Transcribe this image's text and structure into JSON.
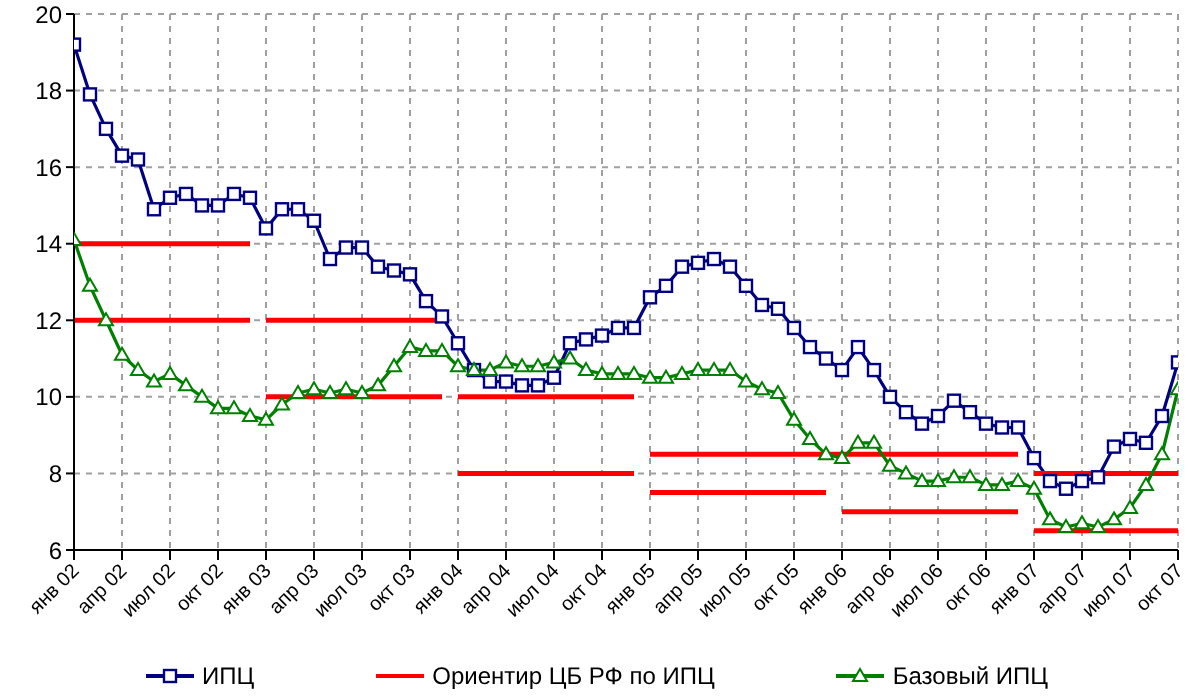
{
  "chart_data": {
    "type": "line",
    "categories": [
      "янв 02",
      null,
      null,
      "апр 02",
      null,
      null,
      "июл 02",
      null,
      null,
      "окт 02",
      null,
      null,
      "янв 03",
      null,
      null,
      "апр 03",
      null,
      null,
      "июл 03",
      null,
      null,
      "окт 03",
      null,
      null,
      "янв 04",
      null,
      null,
      "апр 04",
      null,
      null,
      "июл 04",
      null,
      null,
      "окт 04",
      null,
      null,
      "янв 05",
      null,
      null,
      "апр 05",
      null,
      null,
      "июл 05",
      null,
      null,
      "окт 05",
      null,
      null,
      "янв 06",
      null,
      null,
      "апр 06",
      null,
      null,
      "июл 06",
      null,
      null,
      "окт 06",
      null,
      null,
      "янв 07",
      null,
      null,
      "апр 07",
      null,
      null,
      "июл 07",
      null,
      null,
      "окт 07"
    ],
    "ylim": [
      6,
      20
    ],
    "yticks": [
      6,
      8,
      10,
      12,
      14,
      16,
      18,
      20
    ],
    "grid": true,
    "legend": "bottom",
    "series": [
      {
        "name": "ИПЦ",
        "color": "#000080",
        "marker": "square",
        "values": [
          19.2,
          17.9,
          17.0,
          16.3,
          16.2,
          14.9,
          15.2,
          15.3,
          15.0,
          15.0,
          15.3,
          15.2,
          14.4,
          14.9,
          14.9,
          14.6,
          13.6,
          13.9,
          13.9,
          13.4,
          13.3,
          13.2,
          12.5,
          12.1,
          11.4,
          10.7,
          10.4,
          10.4,
          10.3,
          10.3,
          10.5,
          11.4,
          11.5,
          11.6,
          11.8,
          11.8,
          12.6,
          12.9,
          13.4,
          13.5,
          13.6,
          13.4,
          12.9,
          12.4,
          12.3,
          11.8,
          11.3,
          11.0,
          10.7,
          11.3,
          10.7,
          10.0,
          9.6,
          9.3,
          9.5,
          9.9,
          9.6,
          9.3,
          9.2,
          9.2,
          8.4,
          7.8,
          7.6,
          7.8,
          7.9,
          8.7,
          8.9,
          8.8,
          9.5,
          10.9
        ]
      },
      {
        "name": "Ориентир ЦБ РФ по ИПЦ",
        "color": "#ff0000",
        "marker": "none",
        "values": [
          14,
          14,
          14,
          14,
          14,
          14,
          14,
          14,
          14,
          14,
          14,
          14,
          null,
          null,
          null,
          null,
          null,
          null,
          null,
          null,
          null,
          null,
          null,
          null,
          null,
          null,
          null,
          null,
          null,
          null,
          null,
          null,
          null,
          null,
          null,
          null,
          null,
          null,
          null,
          null,
          null,
          null,
          null,
          null,
          null,
          null,
          null,
          null,
          null,
          null,
          null,
          null,
          null,
          null,
          null,
          null,
          null,
          null,
          null,
          null,
          null,
          null,
          null,
          null,
          null,
          null,
          null,
          null,
          null,
          null
        ]
      },
      {
        "color": "#ff0000",
        "marker": "none",
        "values": [
          12,
          12,
          12,
          12,
          12,
          12,
          12,
          12,
          12,
          12,
          12,
          12,
          null,
          null,
          null,
          null,
          null,
          null,
          null,
          null,
          null,
          null,
          null,
          null,
          null,
          null,
          null,
          null,
          null,
          null,
          null,
          null,
          null,
          null,
          null,
          null,
          null,
          null,
          null,
          null,
          null,
          null,
          null,
          null,
          null,
          null,
          null,
          null,
          null,
          null,
          null,
          null,
          null,
          null,
          null,
          null,
          null,
          null,
          null,
          null,
          null,
          null,
          null,
          null,
          null,
          null,
          null,
          null,
          null,
          null
        ]
      },
      {
        "color": "#ff0000",
        "marker": "none",
        "values": [
          null,
          null,
          null,
          null,
          null,
          null,
          null,
          null,
          null,
          null,
          null,
          null,
          12,
          12,
          12,
          12,
          12,
          12,
          12,
          12,
          12,
          12,
          12,
          12,
          null,
          null,
          null,
          null,
          null,
          null,
          null,
          null,
          null,
          null,
          null,
          null,
          null,
          null,
          null,
          null,
          null,
          null,
          null,
          null,
          null,
          null,
          null,
          null,
          null,
          null,
          null,
          null,
          null,
          null,
          null,
          null,
          null,
          null,
          null,
          null,
          null,
          null,
          null,
          null,
          null,
          null,
          null,
          null,
          null,
          null
        ]
      },
      {
        "color": "#ff0000",
        "marker": "none",
        "values": [
          null,
          null,
          null,
          null,
          null,
          null,
          null,
          null,
          null,
          null,
          null,
          null,
          10,
          10,
          10,
          10,
          10,
          10,
          10,
          10,
          10,
          10,
          10,
          10,
          null,
          null,
          null,
          null,
          null,
          null,
          null,
          null,
          null,
          null,
          null,
          null,
          null,
          null,
          null,
          null,
          null,
          null,
          null,
          null,
          null,
          null,
          null,
          null,
          null,
          null,
          null,
          null,
          null,
          null,
          null,
          null,
          null,
          null,
          null,
          null,
          null,
          null,
          null,
          null,
          null,
          null,
          null,
          null,
          null,
          null
        ]
      },
      {
        "color": "#ff0000",
        "marker": "none",
        "values": [
          null,
          null,
          null,
          null,
          null,
          null,
          null,
          null,
          null,
          null,
          null,
          null,
          null,
          null,
          null,
          null,
          null,
          null,
          null,
          null,
          null,
          null,
          null,
          null,
          10,
          10,
          10,
          10,
          10,
          10,
          10,
          10,
          10,
          10,
          10,
          10,
          null,
          null,
          null,
          null,
          null,
          null,
          null,
          null,
          null,
          null,
          null,
          null,
          null,
          null,
          null,
          null,
          null,
          null,
          null,
          null,
          null,
          null,
          null,
          null,
          null,
          null,
          null,
          null,
          null,
          null,
          null,
          null,
          null,
          null
        ]
      },
      {
        "color": "#ff0000",
        "marker": "none",
        "values": [
          null,
          null,
          null,
          null,
          null,
          null,
          null,
          null,
          null,
          null,
          null,
          null,
          null,
          null,
          null,
          null,
          null,
          null,
          null,
          null,
          null,
          null,
          null,
          null,
          8,
          8,
          8,
          8,
          8,
          8,
          8,
          8,
          8,
          8,
          8,
          8,
          null,
          null,
          null,
          null,
          null,
          null,
          null,
          null,
          null,
          null,
          null,
          null,
          null,
          null,
          null,
          null,
          null,
          null,
          null,
          null,
          null,
          null,
          null,
          null,
          null,
          null,
          null,
          null,
          null,
          null,
          null,
          null,
          null,
          null
        ]
      },
      {
        "color": "#ff0000",
        "marker": "none",
        "values": [
          null,
          null,
          null,
          null,
          null,
          null,
          null,
          null,
          null,
          null,
          null,
          null,
          null,
          null,
          null,
          null,
          null,
          null,
          null,
          null,
          null,
          null,
          null,
          null,
          null,
          null,
          null,
          null,
          null,
          null,
          null,
          null,
          null,
          null,
          null,
          null,
          8.5,
          8.5,
          8.5,
          8.5,
          8.5,
          8.5,
          8.5,
          8.5,
          8.5,
          8.5,
          8.5,
          8.5,
          8.5,
          8.5,
          8.5,
          8.5,
          8.5,
          8.5,
          8.5,
          8.5,
          8.5,
          8.5,
          8.5,
          8.5,
          null,
          null,
          null,
          null,
          null,
          null,
          null,
          null,
          null,
          null
        ]
      },
      {
        "color": "#ff0000",
        "marker": "none",
        "values": [
          null,
          null,
          null,
          null,
          null,
          null,
          null,
          null,
          null,
          null,
          null,
          null,
          null,
          null,
          null,
          null,
          null,
          null,
          null,
          null,
          null,
          null,
          null,
          null,
          null,
          null,
          null,
          null,
          null,
          null,
          null,
          null,
          null,
          null,
          null,
          null,
          7.5,
          7.5,
          7.5,
          7.5,
          7.5,
          7.5,
          7.5,
          7.5,
          7.5,
          7.5,
          7.5,
          7.5,
          null,
          null,
          null,
          null,
          null,
          null,
          null,
          null,
          null,
          null,
          null,
          null,
          null,
          null,
          null,
          null,
          null,
          null,
          null,
          null,
          null,
          null
        ]
      },
      {
        "color": "#ff0000",
        "marker": "none",
        "values": [
          null,
          null,
          null,
          null,
          null,
          null,
          null,
          null,
          null,
          null,
          null,
          null,
          null,
          null,
          null,
          null,
          null,
          null,
          null,
          null,
          null,
          null,
          null,
          null,
          null,
          null,
          null,
          null,
          null,
          null,
          null,
          null,
          null,
          null,
          null,
          null,
          null,
          null,
          null,
          null,
          null,
          null,
          null,
          null,
          null,
          null,
          null,
          null,
          7,
          7,
          7,
          7,
          7,
          7,
          7,
          7,
          7,
          7,
          7,
          7,
          null,
          null,
          null,
          null,
          null,
          null,
          null,
          null,
          null,
          null
        ]
      },
      {
        "color": "#ff0000",
        "marker": "none",
        "values": [
          null,
          null,
          null,
          null,
          null,
          null,
          null,
          null,
          null,
          null,
          null,
          null,
          null,
          null,
          null,
          null,
          null,
          null,
          null,
          null,
          null,
          null,
          null,
          null,
          null,
          null,
          null,
          null,
          null,
          null,
          null,
          null,
          null,
          null,
          null,
          null,
          null,
          null,
          null,
          null,
          null,
          null,
          null,
          null,
          null,
          null,
          null,
          null,
          null,
          null,
          null,
          null,
          null,
          null,
          null,
          null,
          null,
          null,
          null,
          null,
          8,
          8,
          8,
          8,
          8,
          8,
          8,
          8,
          8,
          8
        ]
      },
      {
        "color": "#ff0000",
        "marker": "none",
        "values": [
          null,
          null,
          null,
          null,
          null,
          null,
          null,
          null,
          null,
          null,
          null,
          null,
          null,
          null,
          null,
          null,
          null,
          null,
          null,
          null,
          null,
          null,
          null,
          null,
          null,
          null,
          null,
          null,
          null,
          null,
          null,
          null,
          null,
          null,
          null,
          null,
          null,
          null,
          null,
          null,
          null,
          null,
          null,
          null,
          null,
          null,
          null,
          null,
          null,
          null,
          null,
          null,
          null,
          null,
          null,
          null,
          null,
          null,
          null,
          null,
          6.5,
          6.5,
          6.5,
          6.5,
          6.5,
          6.5,
          6.5,
          6.5,
          6.5,
          6.5
        ]
      },
      {
        "name": "Базовый ИПЦ",
        "color": "#008000",
        "marker": "triangle",
        "values": [
          14.1,
          12.9,
          12.0,
          11.1,
          10.7,
          10.4,
          10.6,
          10.3,
          10.0,
          9.7,
          9.7,
          9.5,
          9.4,
          9.8,
          10.1,
          10.2,
          10.1,
          10.2,
          10.1,
          10.3,
          10.8,
          11.3,
          11.2,
          11.2,
          10.8,
          10.7,
          10.7,
          10.9,
          10.8,
          10.8,
          10.9,
          11.0,
          10.7,
          10.6,
          10.6,
          10.6,
          10.5,
          10.5,
          10.6,
          10.7,
          10.7,
          10.7,
          10.4,
          10.2,
          10.1,
          9.4,
          8.9,
          8.5,
          8.4,
          8.8,
          8.8,
          8.2,
          8.0,
          7.8,
          7.8,
          7.9,
          7.9,
          7.7,
          7.7,
          7.8,
          7.6,
          6.8,
          6.6,
          6.7,
          6.6,
          6.8,
          7.1,
          7.7,
          8.5,
          10.2
        ]
      }
    ]
  }
}
